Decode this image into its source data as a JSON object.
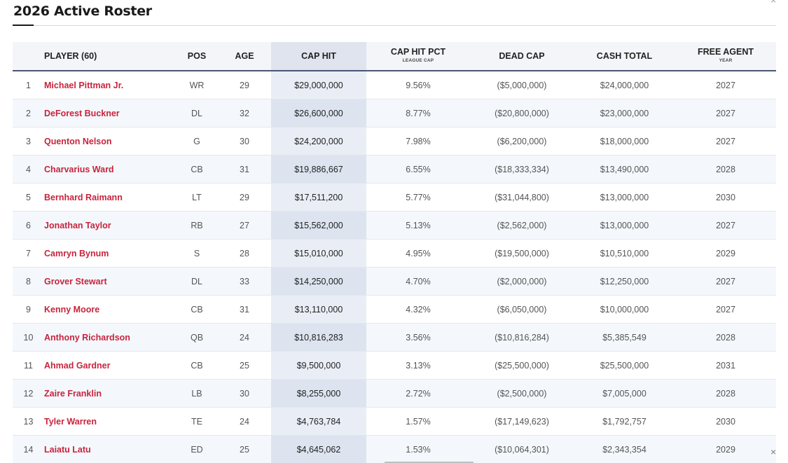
{
  "title": "2026 Active Roster",
  "close_glyph": "×",
  "columns": {
    "rank": "",
    "player": "PLAYER (60)",
    "pos": "POS",
    "age": "AGE",
    "cap_hit": "CAP HIT",
    "cap_hit_pct": "CAP HIT PCT",
    "cap_hit_pct_sub": "LEAGUE CAP",
    "dead_cap": "DEAD CAP",
    "cash_total": "CASH TOTAL",
    "free_agent": "FREE AGENT",
    "free_agent_sub": "YEAR"
  },
  "rows": [
    {
      "rank": "1",
      "player": "Michael Pittman Jr.",
      "pos": "WR",
      "age": "29",
      "cap_hit": "$29,000,000",
      "pct": "9.56%",
      "dead": "($5,000,000)",
      "cash": "$24,000,000",
      "fa": "2027"
    },
    {
      "rank": "2",
      "player": "DeForest Buckner",
      "pos": "DL",
      "age": "32",
      "cap_hit": "$26,600,000",
      "pct": "8.77%",
      "dead": "($20,800,000)",
      "cash": "$23,000,000",
      "fa": "2027"
    },
    {
      "rank": "3",
      "player": "Quenton Nelson",
      "pos": "G",
      "age": "30",
      "cap_hit": "$24,200,000",
      "pct": "7.98%",
      "dead": "($6,200,000)",
      "cash": "$18,000,000",
      "fa": "2027"
    },
    {
      "rank": "4",
      "player": "Charvarius Ward",
      "pos": "CB",
      "age": "31",
      "cap_hit": "$19,886,667",
      "pct": "6.55%",
      "dead": "($18,333,334)",
      "cash": "$13,490,000",
      "fa": "2028"
    },
    {
      "rank": "5",
      "player": "Bernhard Raimann",
      "pos": "LT",
      "age": "29",
      "cap_hit": "$17,511,200",
      "pct": "5.77%",
      "dead": "($31,044,800)",
      "cash": "$13,000,000",
      "fa": "2030"
    },
    {
      "rank": "6",
      "player": "Jonathan Taylor",
      "pos": "RB",
      "age": "27",
      "cap_hit": "$15,562,000",
      "pct": "5.13%",
      "dead": "($2,562,000)",
      "cash": "$13,000,000",
      "fa": "2027"
    },
    {
      "rank": "7",
      "player": "Camryn Bynum",
      "pos": "S",
      "age": "28",
      "cap_hit": "$15,010,000",
      "pct": "4.95%",
      "dead": "($19,500,000)",
      "cash": "$10,510,000",
      "fa": "2029"
    },
    {
      "rank": "8",
      "player": "Grover Stewart",
      "pos": "DL",
      "age": "33",
      "cap_hit": "$14,250,000",
      "pct": "4.70%",
      "dead": "($2,000,000)",
      "cash": "$12,250,000",
      "fa": "2027"
    },
    {
      "rank": "9",
      "player": "Kenny Moore",
      "pos": "CB",
      "age": "31",
      "cap_hit": "$13,110,000",
      "pct": "4.32%",
      "dead": "($6,050,000)",
      "cash": "$10,000,000",
      "fa": "2027"
    },
    {
      "rank": "10",
      "player": "Anthony Richardson",
      "pos": "QB",
      "age": "24",
      "cap_hit": "$10,816,283",
      "pct": "3.56%",
      "dead": "($10,816,284)",
      "cash": "$5,385,549",
      "fa": "2028"
    },
    {
      "rank": "11",
      "player": "Ahmad Gardner",
      "pos": "CB",
      "age": "25",
      "cap_hit": "$9,500,000",
      "pct": "3.13%",
      "dead": "($25,500,000)",
      "cash": "$25,500,000",
      "fa": "2031"
    },
    {
      "rank": "12",
      "player": "Zaire Franklin",
      "pos": "LB",
      "age": "30",
      "cap_hit": "$8,255,000",
      "pct": "2.72%",
      "dead": "($2,500,000)",
      "cash": "$7,005,000",
      "fa": "2028"
    },
    {
      "rank": "13",
      "player": "Tyler Warren",
      "pos": "TE",
      "age": "24",
      "cap_hit": "$4,763,784",
      "pct": "1.57%",
      "dead": "($17,149,623)",
      "cash": "$1,792,757",
      "fa": "2030"
    },
    {
      "rank": "14",
      "player": "Laiatu Latu",
      "pos": "ED",
      "age": "25",
      "cap_hit": "$4,645,062",
      "pct": "1.53%",
      "dead": "($10,064,301)",
      "cash": "$2,343,354",
      "fa": "2029"
    }
  ]
}
